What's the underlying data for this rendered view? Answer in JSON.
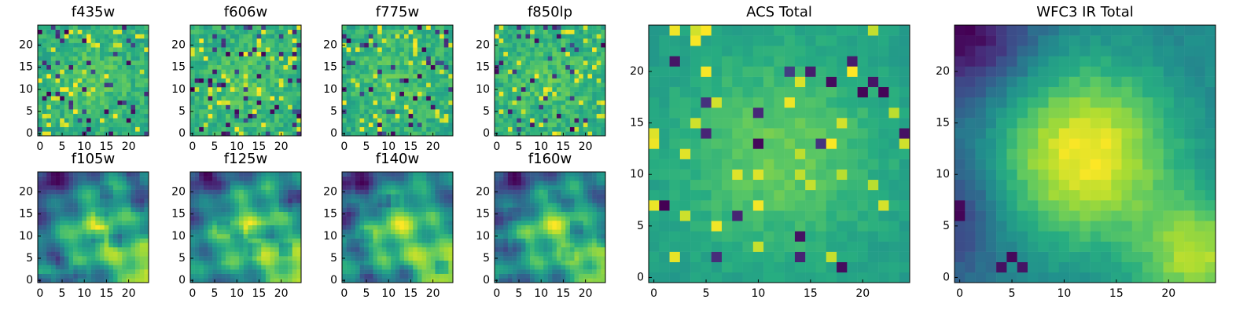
{
  "figure": {
    "panels": [
      {
        "title": "f435w",
        "colormap": "viridis-like",
        "x_ticks": [
          "0",
          "5",
          "10",
          "15",
          "20"
        ],
        "y_ticks": [
          "0",
          "5",
          "10",
          "15",
          "20"
        ]
      },
      {
        "title": "f606w",
        "colormap": "viridis-like",
        "x_ticks": [
          "0",
          "5",
          "10",
          "15",
          "20"
        ],
        "y_ticks": [
          "0",
          "5",
          "10",
          "15",
          "20"
        ]
      },
      {
        "title": "f775w",
        "colormap": "viridis-like",
        "x_ticks": [
          "0",
          "5",
          "10",
          "15",
          "20"
        ],
        "y_ticks": [
          "0",
          "5",
          "10",
          "15",
          "20"
        ]
      },
      {
        "title": "f850lp",
        "colormap": "viridis-like",
        "x_ticks": [
          "0",
          "5",
          "10",
          "15",
          "20"
        ],
        "y_ticks": [
          "0",
          "5",
          "10",
          "15",
          "20"
        ]
      },
      {
        "title": "f105w",
        "colormap": "viridis-like",
        "x_ticks": [
          "0",
          "5",
          "10",
          "15",
          "20"
        ],
        "y_ticks": [
          "0",
          "5",
          "10",
          "15",
          "20"
        ]
      },
      {
        "title": "f125w",
        "colormap": "viridis-like",
        "x_ticks": [
          "0",
          "5",
          "10",
          "15",
          "20"
        ],
        "y_ticks": [
          "0",
          "5",
          "10",
          "15",
          "20"
        ]
      },
      {
        "title": "f140w",
        "colormap": "viridis-like",
        "x_ticks": [
          "0",
          "5",
          "10",
          "15",
          "20"
        ],
        "y_ticks": [
          "0",
          "5",
          "10",
          "15",
          "20"
        ]
      },
      {
        "title": "f160w",
        "colormap": "viridis-like",
        "x_ticks": [
          "0",
          "5",
          "10",
          "15",
          "20"
        ],
        "y_ticks": [
          "0",
          "5",
          "10",
          "15",
          "20"
        ]
      },
      {
        "title": "ACS Total",
        "colormap": "viridis-like",
        "x_ticks": [
          "0",
          "5",
          "10",
          "15",
          "20"
        ],
        "y_ticks": [
          "0",
          "5",
          "10",
          "15",
          "20"
        ]
      },
      {
        "title": "WFC3 IR Total",
        "colormap": "viridis-like",
        "x_ticks": [
          "0",
          "5",
          "10",
          "15",
          "20"
        ],
        "y_ticks": [
          "0",
          "5",
          "10",
          "15",
          "20"
        ]
      }
    ]
  },
  "chart_data": [
    {
      "type": "heatmap",
      "title": "f435w",
      "grid_size": [
        25,
        25
      ],
      "x_range": [
        0,
        24
      ],
      "y_range": [
        0,
        24
      ],
      "x_ticks": [
        0,
        5,
        10,
        15,
        20
      ],
      "y_ticks": [
        0,
        5,
        10,
        15,
        20
      ],
      "pattern": "high-frequency noise, mostly green-yellow with scattered dark pixels"
    },
    {
      "type": "heatmap",
      "title": "f606w",
      "grid_size": [
        25,
        25
      ],
      "x_range": [
        0,
        24
      ],
      "y_range": [
        0,
        24
      ],
      "x_ticks": [
        0,
        5,
        10,
        15,
        20
      ],
      "y_ticks": [
        0,
        5,
        10,
        15,
        20
      ],
      "pattern": "high-frequency noise, mostly green-yellow with scattered dark pixels"
    },
    {
      "type": "heatmap",
      "title": "f775w",
      "grid_size": [
        25,
        25
      ],
      "x_range": [
        0,
        24
      ],
      "y_range": [
        0,
        24
      ],
      "x_ticks": [
        0,
        5,
        10,
        15,
        20
      ],
      "y_ticks": [
        0,
        5,
        10,
        15,
        20
      ],
      "pattern": "high-frequency noise, slightly brighter near center"
    },
    {
      "type": "heatmap",
      "title": "f850lp",
      "grid_size": [
        25,
        25
      ],
      "x_range": [
        0,
        24
      ],
      "y_range": [
        0,
        24
      ],
      "x_ticks": [
        0,
        5,
        10,
        15,
        20
      ],
      "y_ticks": [
        0,
        5,
        10,
        15,
        20
      ],
      "pattern": "high-frequency noise, slightly brighter near center"
    },
    {
      "type": "heatmap",
      "title": "f105w",
      "grid_size": [
        25,
        25
      ],
      "x_range": [
        0,
        24
      ],
      "y_range": [
        0,
        24
      ],
      "x_ticks": [
        0,
        5,
        10,
        15,
        20
      ],
      "y_ticks": [
        0,
        5,
        10,
        15,
        20
      ],
      "pattern": "smoother, bright yellow blob near center and lower-right edge, darker top-left"
    },
    {
      "type": "heatmap",
      "title": "f125w",
      "grid_size": [
        25,
        25
      ],
      "x_range": [
        0,
        24
      ],
      "y_range": [
        0,
        24
      ],
      "x_ticks": [
        0,
        5,
        10,
        15,
        20
      ],
      "y_ticks": [
        0,
        5,
        10,
        15,
        20
      ],
      "pattern": "smoother, bright center and lower-right, darker edges"
    },
    {
      "type": "heatmap",
      "title": "f140w",
      "grid_size": [
        25,
        25
      ],
      "x_range": [
        0,
        24
      ],
      "y_range": [
        0,
        24
      ],
      "x_ticks": [
        0,
        5,
        10,
        15,
        20
      ],
      "y_ticks": [
        0,
        5,
        10,
        15,
        20
      ],
      "pattern": "smoother, bright center and lower-right, dark patches upper-left"
    },
    {
      "type": "heatmap",
      "title": "f160w",
      "grid_size": [
        25,
        25
      ],
      "x_range": [
        0,
        24
      ],
      "y_range": [
        0,
        24
      ],
      "x_ticks": [
        0,
        5,
        10,
        15,
        20
      ],
      "y_ticks": [
        0,
        5,
        10,
        15,
        20
      ],
      "pattern": "smoother, bright center and right edge, darker upper-left"
    },
    {
      "type": "heatmap",
      "title": "ACS Total",
      "grid_size": [
        25,
        25
      ],
      "x_range": [
        0,
        24
      ],
      "y_range": [
        0,
        24
      ],
      "x_ticks": [
        0,
        5,
        10,
        15,
        20
      ],
      "y_ticks": [
        0,
        5,
        10,
        15,
        20
      ],
      "pattern": "noisy, bright yellow near center, scattered dark pixels"
    },
    {
      "type": "heatmap",
      "title": "WFC3 IR Total",
      "grid_size": [
        25,
        25
      ],
      "x_range": [
        0,
        24
      ],
      "y_range": [
        0,
        24
      ],
      "x_ticks": [
        0,
        5,
        10,
        15,
        20
      ],
      "y_ticks": [
        0,
        5,
        10,
        15,
        20
      ],
      "pattern": "smooth, bright yellow blob centered near (12,12) and lower-right, dark purple top-left corner and left edge"
    }
  ]
}
